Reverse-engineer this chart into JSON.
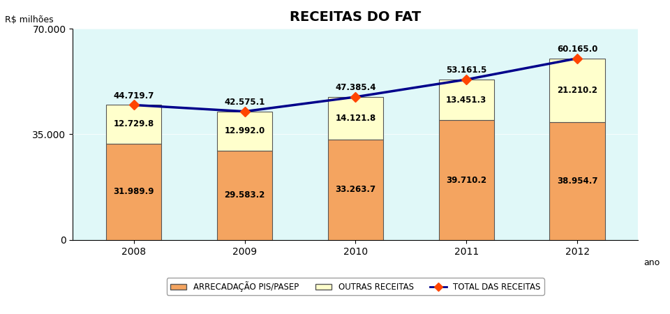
{
  "title": "RECEITAS DO FAT",
  "ylabel": "R$ milhões",
  "ytick_label": "70.000",
  "ytick_mid": "35.000",
  "xlabel_suffix": "ano",
  "years": [
    2008,
    2009,
    2010,
    2011,
    2012
  ],
  "pis_pasep": [
    31989.9,
    29583.2,
    33263.7,
    39710.2,
    38954.7
  ],
  "outras": [
    12729.8,
    12992.0,
    14121.8,
    13451.3,
    21210.2
  ],
  "total": [
    44719.7,
    42575.1,
    47385.4,
    53161.5,
    60165.0
  ],
  "pis_color": "#F4A460",
  "outras_color": "#FFFFCC",
  "bar_edge_color": "#555555",
  "line_color": "#00008B",
  "marker_color": "#FF4500",
  "bg_color": "#E0F8F8",
  "legend_labels": [
    "ARRECADAÇÃO PIS/PASEP",
    "OUTRAS RECEITAS",
    "TOTAL DAS RECEITAS"
  ],
  "ylim": [
    0,
    70000
  ],
  "yticks": [
    0,
    35000,
    70000
  ],
  "ytick_labels": [
    "0",
    "35.000",
    "70.000"
  ]
}
